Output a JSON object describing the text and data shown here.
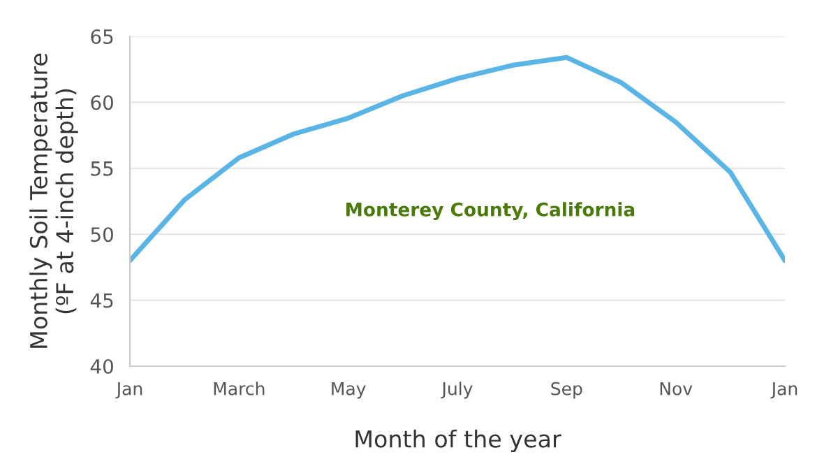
{
  "chart_data": {
    "type": "line",
    "xlabel": "Month of the year",
    "ylabel": "Monthly Soil Temperature\n(ºF at 4-inch depth)",
    "categories": [
      "Jan",
      null,
      "March",
      null,
      "May",
      null,
      "July",
      null,
      "Sep",
      null,
      "Nov",
      null,
      "Jan"
    ],
    "series": [
      {
        "color": "#5ab4e5",
        "values": [
          48,
          52.6,
          55.8,
          57.6,
          58.8,
          60.5,
          61.8,
          62.8,
          63.4,
          61.5,
          58.5,
          54.7,
          48
        ]
      }
    ],
    "ylim": [
      40,
      65
    ],
    "yticks": [
      40,
      45,
      50,
      55,
      60,
      65
    ],
    "grid": "y",
    "marker": "none",
    "line_style": "solid",
    "legend": false,
    "annotations": [
      "Monterey County, California"
    ]
  }
}
